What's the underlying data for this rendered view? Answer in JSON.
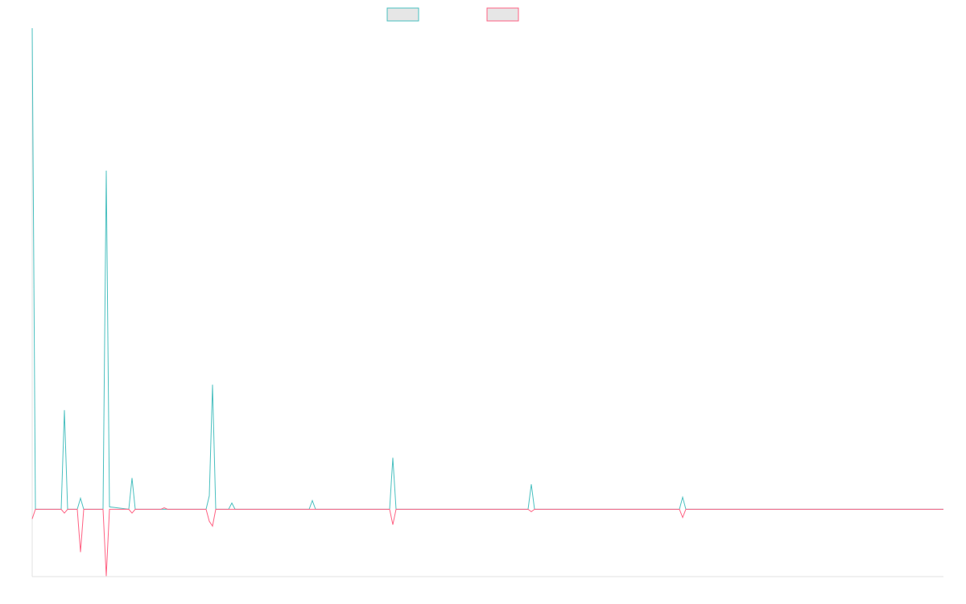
{
  "chart_data": {
    "type": "line",
    "x": [
      0,
      1,
      9,
      10,
      11,
      14,
      15,
      16,
      22,
      23,
      24,
      30,
      31,
      32,
      40,
      41,
      42,
      54,
      55,
      56,
      57,
      61,
      62,
      63,
      86,
      87,
      88,
      111,
      112,
      113,
      154,
      155,
      156,
      201,
      202,
      203,
      283
    ],
    "series": [
      {
        "color": "#4bc0c0",
        "values": [
          100,
          0,
          0,
          20.6,
          0,
          0,
          2.3,
          0,
          0,
          70.4,
          0.5,
          0,
          6.5,
          0,
          0,
          0,
          0,
          0,
          2.8,
          25.9,
          0,
          0,
          1.3,
          0,
          0,
          1.8,
          0,
          0,
          10.7,
          0,
          0,
          5.2,
          0,
          0,
          2.5,
          0,
          0
        ]
      },
      {
        "color": "#ff6384",
        "values": [
          -2,
          0,
          0,
          -0.8,
          0,
          0,
          -8.9,
          0,
          0,
          -13.9,
          0,
          0,
          -0.8,
          0,
          0,
          0.3,
          0,
          0,
          -2.5,
          -3.5,
          0,
          0,
          0,
          0,
          0,
          0,
          0,
          0,
          -3.2,
          0,
          0,
          -0.5,
          0,
          0,
          -1.7,
          0,
          0
        ]
      }
    ],
    "xlim": [
      0,
      283
    ],
    "ylim": [
      -14,
      100
    ],
    "legend": "top"
  }
}
